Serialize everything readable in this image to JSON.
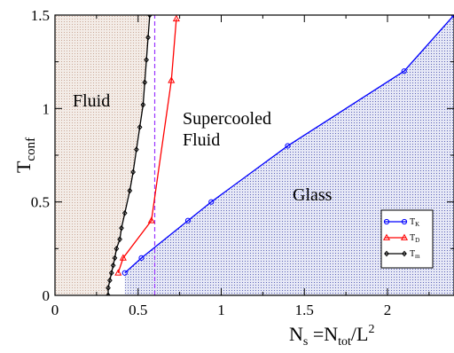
{
  "chart_data": {
    "type": "line",
    "xlabel": "N_s = N_tot / L^2",
    "ylabel": "T_conf",
    "xlim": [
      0,
      2.4
    ],
    "ylim": [
      0,
      1.5
    ],
    "x_ticks": [
      "0",
      "0.5",
      "1",
      "1.5",
      "2"
    ],
    "y_ticks": [
      "0",
      "0.5",
      "1",
      "1.5"
    ],
    "grid": false,
    "legend_position": "bottom-right",
    "series": [
      {
        "name": "T_K",
        "color": "#0000ff",
        "marker": "circle",
        "x": [
          0.42,
          0.52,
          0.8,
          0.94,
          1.4,
          2.1,
          2.4
        ],
        "y": [
          0.12,
          0.2,
          0.4,
          0.5,
          0.8,
          1.2,
          1.5
        ]
      },
      {
        "name": "T_D",
        "color": "#ff0000",
        "marker": "triangle",
        "x": [
          0.38,
          0.41,
          0.58,
          0.7,
          0.73
        ],
        "y": [
          0.12,
          0.2,
          0.4,
          1.15,
          1.48
        ]
      },
      {
        "name": "T_m",
        "color": "#000000",
        "marker": "diamond",
        "x": [
          0.32,
          0.32,
          0.33,
          0.34,
          0.35,
          0.36,
          0.37,
          0.39,
          0.4,
          0.42,
          0.45,
          0.47,
          0.49,
          0.51,
          0.53,
          0.54,
          0.55,
          0.56,
          0.57
        ],
        "y": [
          0.0,
          0.04,
          0.08,
          0.12,
          0.16,
          0.2,
          0.25,
          0.3,
          0.36,
          0.44,
          0.56,
          0.66,
          0.78,
          0.9,
          1.02,
          1.14,
          1.26,
          1.38,
          1.5
        ]
      }
    ],
    "guide_line": {
      "x": 0.6,
      "color": "#9933ff",
      "style": "dashed"
    },
    "regions": [
      {
        "name": "Fluid",
        "fill": "#efe5df"
      },
      {
        "name": "Supercooled Fluid",
        "fill": "#ffffff"
      },
      {
        "name": "Glass",
        "fill": "#d9dcf2"
      }
    ]
  },
  "labels": {
    "fluid": "Fluid",
    "supercooled_line1": "Supercooled",
    "supercooled_line2": "Fluid",
    "glass": "Glass"
  },
  "axis_title": {
    "y_main": "T",
    "y_sub": "conf",
    "x_n": "N",
    "x_n_sub": "s",
    "x_eq": " =N",
    "x_tot_sub": "tot",
    "x_rest": "/L",
    "x_sup": "2"
  },
  "legend_sub": [
    "K",
    "D",
    "m"
  ]
}
